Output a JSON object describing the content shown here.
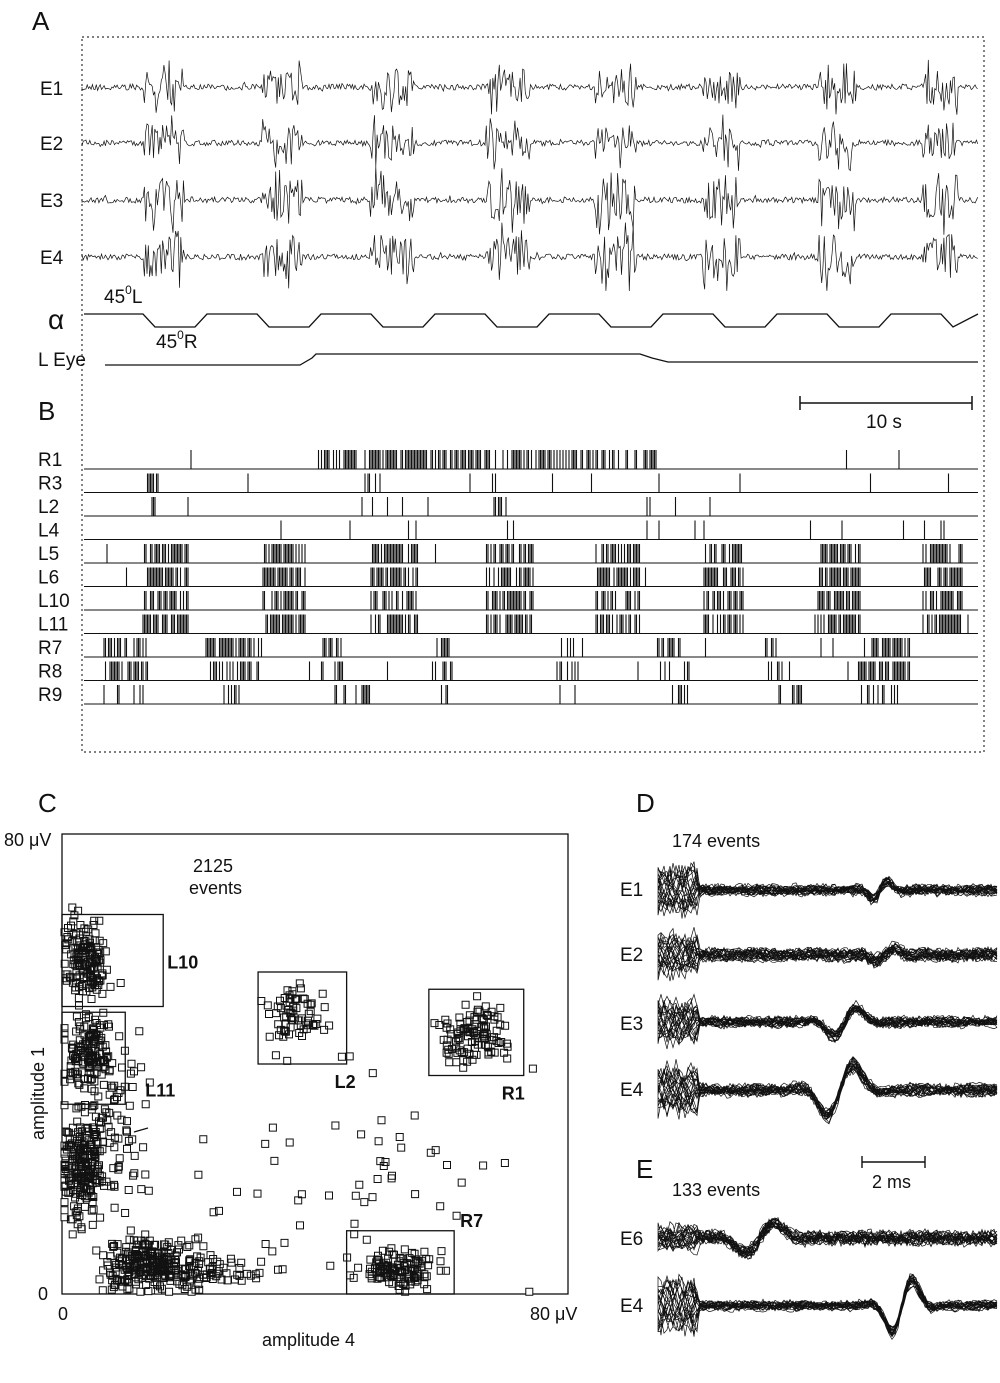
{
  "panels": {
    "a": "A",
    "b": "B",
    "c": "C",
    "d": "D",
    "e": "E"
  },
  "panel_a": {
    "channels": [
      "E1",
      "E2",
      "E3",
      "E4"
    ],
    "alpha_label": "α",
    "angle_left_base": "45",
    "angle_left_sup": "0",
    "angle_left_suffix": "L",
    "angle_right_base": "45",
    "angle_right_sup": "0",
    "angle_right_suffix": "R",
    "eye_label": "L Eye"
  },
  "panel_b": {
    "scalebar_label": "10 s",
    "units": [
      "R1",
      "R3",
      "L2",
      "L4",
      "L5",
      "L6",
      "L10",
      "L11",
      "R7",
      "R8",
      "R9"
    ]
  },
  "panel_c": {
    "chart_data": {
      "type": "scatter",
      "xlabel": "amplitude 4",
      "ylabel": "amplitude 1",
      "x_tick_min": "0",
      "x_tick_max": "80 μV",
      "y_tick_min": "0",
      "y_tick_max": "80 μV",
      "xlim": [
        0,
        80
      ],
      "ylim": [
        0,
        80
      ],
      "events_count": "2125",
      "events_word": "events",
      "clusters": [
        {
          "name": "L10",
          "x0": 0,
          "x1": 16,
          "y0": 50,
          "y1": 66
        },
        {
          "name": "L11",
          "x0": 0,
          "x1": 10,
          "y0": 33,
          "y1": 49
        },
        {
          "name": "L2",
          "x0": 31,
          "x1": 45,
          "y0": 40,
          "y1": 56
        },
        {
          "name": "R1",
          "x0": 58,
          "x1": 73,
          "y0": 38,
          "y1": 53
        },
        {
          "name": "R7",
          "x0": 45,
          "x1": 62,
          "y0": 0,
          "y1": 11
        }
      ]
    }
  },
  "panel_d": {
    "events": "174 events",
    "channels": [
      "E1",
      "E2",
      "E3",
      "E4"
    ],
    "scalebar_label": "2 ms"
  },
  "panel_e": {
    "events": "133 events",
    "channels": [
      "E6",
      "E4"
    ]
  }
}
